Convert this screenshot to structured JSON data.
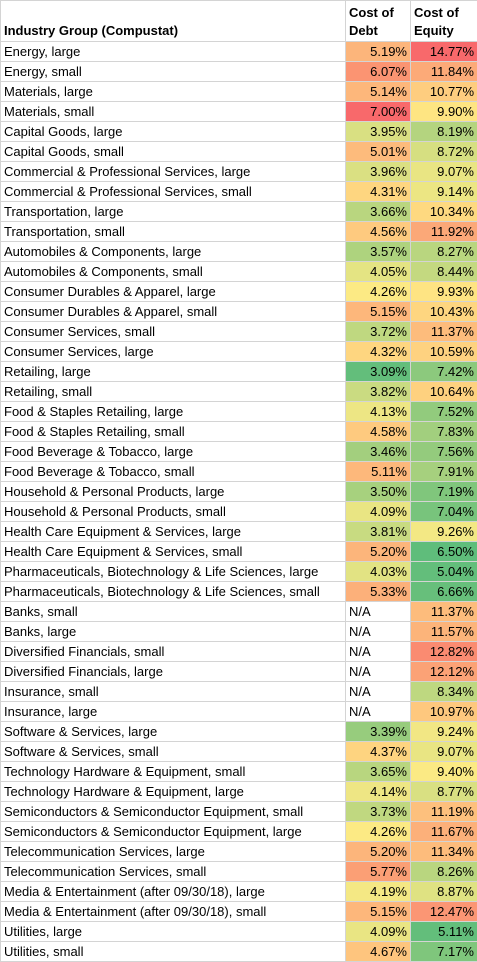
{
  "headers": {
    "group": "Industry Group (Compustat)",
    "debt_line1": "Cost of",
    "debt_line2": "Debt",
    "equity_line1": "Cost of",
    "equity_line2": "Equity"
  },
  "rows": [
    {
      "name": "Energy, large",
      "debt": "5.19%",
      "debt_color": "#fcb57b",
      "equity": "14.77%",
      "equity_color": "#f8696b"
    },
    {
      "name": "Energy, small",
      "debt": "6.07%",
      "debt_color": "#fb9472",
      "equity": "11.84%",
      "equity_color": "#fcaa78"
    },
    {
      "name": "Materials, large",
      "debt": "5.14%",
      "debt_color": "#fdb77b",
      "equity": "10.77%",
      "equity_color": "#fecd7f"
    },
    {
      "name": "Materials, small",
      "debt": "7.00%",
      "debt_color": "#f8696b",
      "equity": "9.90%",
      "equity_color": "#fee582"
    },
    {
      "name": "Capital Goods, large",
      "debt": "3.95%",
      "debt_color": "#d9e082",
      "equity": "8.19%",
      "equity_color": "#b4d47f"
    },
    {
      "name": "Capital Goods, small",
      "debt": "5.01%",
      "debt_color": "#fdbb7c",
      "equity": "8.72%",
      "equity_color": "#d6df81"
    },
    {
      "name": "Commercial & Professional Services, large",
      "debt": "3.96%",
      "debt_color": "#dae082",
      "equity": "9.07%",
      "equity_color": "#e9e583"
    },
    {
      "name": "Commercial & Professional Services, small",
      "debt": "4.31%",
      "debt_color": "#fed680",
      "equity": "9.14%",
      "equity_color": "#ece683"
    },
    {
      "name": "Transportation, large",
      "debt": "3.66%",
      "debt_color": "#b9d67f",
      "equity": "10.34%",
      "equity_color": "#fed980"
    },
    {
      "name": "Transportation, small",
      "debt": "4.56%",
      "debt_color": "#feca7f",
      "equity": "11.92%",
      "equity_color": "#fba878"
    },
    {
      "name": "Automobiles & Components, large",
      "debt": "3.57%",
      "debt_color": "#aed37e",
      "equity": "8.27%",
      "equity_color": "#b9d67f"
    },
    {
      "name": "Automobiles & Components, small",
      "debt": "4.05%",
      "debt_color": "#e4e483",
      "equity": "8.44%",
      "equity_color": "#c4d980"
    },
    {
      "name": "Consumer Durables & Apparel, large",
      "debt": "4.26%",
      "debt_color": "#fcea84",
      "equity": "9.93%",
      "equity_color": "#fee483"
    },
    {
      "name": "Consumer Durables & Apparel, small",
      "debt": "5.15%",
      "debt_color": "#fdb77b",
      "equity": "10.43%",
      "equity_color": "#fed680"
    },
    {
      "name": "Consumer Services, small",
      "debt": "3.72%",
      "debt_color": "#bfd880",
      "equity": "11.37%",
      "equity_color": "#fdbc7c"
    },
    {
      "name": "Consumer Services, large",
      "debt": "4.32%",
      "debt_color": "#fed680",
      "equity": "10.59%",
      "equity_color": "#fed280"
    },
    {
      "name": "Retailing, large",
      "debt": "3.09%",
      "debt_color": "#63be7b",
      "equity": "7.42%",
      "equity_color": "#8cc97d"
    },
    {
      "name": "Retailing, small",
      "debt": "3.82%",
      "debt_color": "#cadb81",
      "equity": "10.64%",
      "equity_color": "#fed17f"
    },
    {
      "name": "Food & Staples Retailing, large",
      "debt": "4.13%",
      "debt_color": "#ede684",
      "equity": "7.52%",
      "equity_color": "#92cb7d"
    },
    {
      "name": "Food & Staples Retailing, small",
      "debt": "4.58%",
      "debt_color": "#feca7f",
      "equity": "7.83%",
      "equity_color": "#a2cf7e"
    },
    {
      "name": "Food Beverage & Tobacco, large",
      "debt": "3.46%",
      "debt_color": "#a3cf7e",
      "equity": "7.56%",
      "equity_color": "#94cb7d"
    },
    {
      "name": "Food Beverage & Tobacco, small",
      "debt": "5.11%",
      "debt_color": "#fdb87b",
      "equity": "7.91%",
      "equity_color": "#a6d07e"
    },
    {
      "name": "Household & Personal Products, large",
      "debt": "3.50%",
      "debt_color": "#a7d17e",
      "equity": "7.19%",
      "equity_color": "#80c67c"
    },
    {
      "name": "Household & Personal Products, small",
      "debt": "4.09%",
      "debt_color": "#e9e583",
      "equity": "7.04%",
      "equity_color": "#78c47c"
    },
    {
      "name": "Health Care Equipment & Services, large",
      "debt": "3.81%",
      "debt_color": "#c8db81",
      "equity": "9.26%",
      "equity_color": "#f3e884"
    },
    {
      "name": "Health Care Equipment & Services, small",
      "debt": "5.20%",
      "debt_color": "#fcb57b",
      "equity": "6.50%",
      "equity_color": "#5fbd7b"
    },
    {
      "name": "Pharmaceuticals, Biotechnology & Life Sciences, large",
      "debt": "4.03%",
      "debt_color": "#e2e383",
      "equity": "5.04%",
      "equity_color": "#63be7b"
    },
    {
      "name": "Pharmaceuticals, Biotechnology & Life Sciences, small",
      "debt": "5.33%",
      "debt_color": "#fcb07a",
      "equity": "6.66%",
      "equity_color": "#67bf7b"
    },
    {
      "name": "Banks, small",
      "debt": "N/A",
      "debt_color": "",
      "equity": "11.37%",
      "equity_color": "#fdbc7c"
    },
    {
      "name": "Banks, large",
      "debt": "N/A",
      "debt_color": "",
      "equity": "11.57%",
      "equity_color": "#fcb47a"
    },
    {
      "name": "Diversified Financials, small",
      "debt": "N/A",
      "debt_color": "",
      "equity": "12.82%",
      "equity_color": "#fa8b71"
    },
    {
      "name": "Diversified Financials, large",
      "debt": "N/A",
      "debt_color": "",
      "equity": "12.12%",
      "equity_color": "#fba276"
    },
    {
      "name": "Insurance, small",
      "debt": "N/A",
      "debt_color": "",
      "equity": "8.34%",
      "equity_color": "#bed880"
    },
    {
      "name": "Insurance, large",
      "debt": "N/A",
      "debt_color": "",
      "equity": "10.97%",
      "equity_color": "#fec87e"
    },
    {
      "name": "Software & Services, large",
      "debt": "3.39%",
      "debt_color": "#97cc7d",
      "equity": "9.24%",
      "equity_color": "#f2e784"
    },
    {
      "name": "Software & Services, small",
      "debt": "4.37%",
      "debt_color": "#fed480",
      "equity": "9.07%",
      "equity_color": "#e9e583"
    },
    {
      "name": "Technology Hardware & Equipment, small",
      "debt": "3.65%",
      "debt_color": "#b8d67f",
      "equity": "9.40%",
      "equity_color": "#fbea84"
    },
    {
      "name": "Technology Hardware & Equipment, large",
      "debt": "4.14%",
      "debt_color": "#eee684",
      "equity": "8.77%",
      "equity_color": "#d9e082"
    },
    {
      "name": "Semiconductors & Semiconductor Equipment, small",
      "debt": "3.73%",
      "debt_color": "#c0d880",
      "equity": "11.19%",
      "equity_color": "#fdc07d"
    },
    {
      "name": "Semiconductors & Semiconductor Equipment, large",
      "debt": "4.26%",
      "debt_color": "#fcea84",
      "equity": "11.67%",
      "equity_color": "#fcb07a"
    },
    {
      "name": "Telecommunication Services, large",
      "debt": "5.20%",
      "debt_color": "#fcb57b",
      "equity": "11.34%",
      "equity_color": "#fdbc7c"
    },
    {
      "name": "Telecommunication Services, small",
      "debt": "5.77%",
      "debt_color": "#fb9f75",
      "equity": "8.26%",
      "equity_color": "#b9d67f"
    },
    {
      "name": "Media & Entertainment (after 09/30/18), large",
      "debt": "4.19%",
      "debt_color": "#f4e884",
      "equity": "8.87%",
      "equity_color": "#dfe282"
    },
    {
      "name": "Media & Entertainment (after 09/30/18), small",
      "debt": "5.15%",
      "debt_color": "#fdb77b",
      "equity": "12.47%",
      "equity_color": "#fb9674"
    },
    {
      "name": "Utilities, large",
      "debt": "4.09%",
      "debt_color": "#e9e583",
      "equity": "5.11%",
      "equity_color": "#63be7b"
    },
    {
      "name": "Utilities, small",
      "debt": "4.67%",
      "debt_color": "#fec57e",
      "equity": "7.17%",
      "equity_color": "#7fc67c"
    }
  ]
}
